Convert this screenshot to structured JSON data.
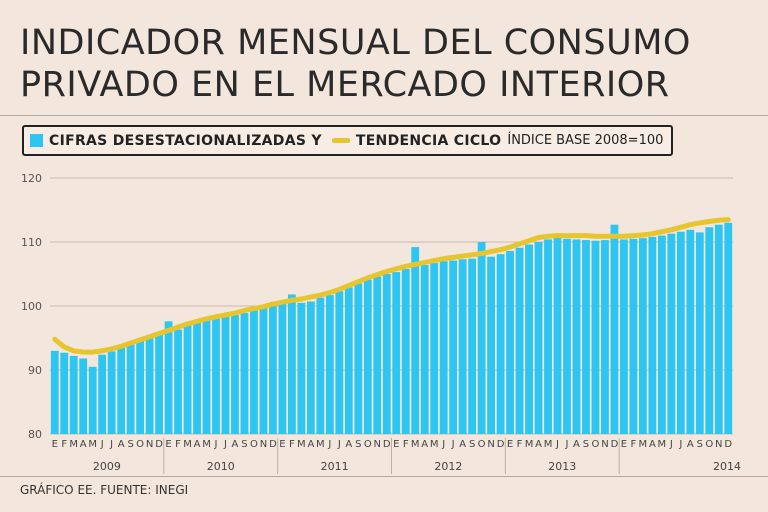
{
  "chart_data": {
    "type": "bar",
    "title_lines": [
      "INDICADOR MENSUAL DEL CONSUMO",
      "PRIVADO EN EL MERCADO INTERIOR"
    ],
    "legend": {
      "series_1": "CIFRAS DESESTACIONALIZADAS Y",
      "series_2": "TENDENCIA CICLO",
      "note": "ÍNDICE BASE 2008=100"
    },
    "ylim": [
      80,
      120
    ],
    "yticks": [
      80,
      90,
      100,
      110,
      120
    ],
    "grid": true,
    "years": [
      "2009",
      "2010",
      "2011",
      "2012",
      "2013",
      "2014"
    ],
    "month_letters": [
      "E",
      "F",
      "M",
      "A",
      "M",
      "J",
      "J",
      "A",
      "S",
      "O",
      "N",
      "D"
    ],
    "months_2014": 6,
    "series": [
      {
        "type": "bar",
        "color": "#2dc5f2",
        "values": [
          93.0,
          92.7,
          92.2,
          91.8,
          90.5,
          92.4,
          92.9,
          93.5,
          94.0,
          94.6,
          95.2,
          95.6,
          97.6,
          96.3,
          97.0,
          97.4,
          97.8,
          98.0,
          98.3,
          98.6,
          98.9,
          99.3,
          99.7,
          100.3,
          100.7,
          101.8,
          100.5,
          100.7,
          101.3,
          101.7,
          102.3,
          102.9,
          103.5,
          104.1,
          104.6,
          105.0,
          105.3,
          105.8,
          109.2,
          106.4,
          106.7,
          107.0,
          107.1,
          107.3,
          107.4,
          110.0,
          107.7,
          108.1,
          108.6,
          109.1,
          109.6,
          110.0,
          110.4,
          110.7,
          110.5,
          110.4,
          110.3,
          110.2,
          110.3,
          112.7,
          110.4,
          110.5,
          110.6,
          110.8,
          111.0,
          111.3,
          111.6,
          111.9,
          111.5,
          112.3,
          112.7,
          113.0
        ]
      },
      {
        "type": "line",
        "color": "#e6c52e",
        "values": [
          94.8,
          93.6,
          93.0,
          92.8,
          92.8,
          93.0,
          93.3,
          93.7,
          94.2,
          94.7,
          95.2,
          95.7,
          96.2,
          96.7,
          97.2,
          97.6,
          98.0,
          98.3,
          98.6,
          98.9,
          99.3,
          99.6,
          99.9,
          100.3,
          100.6,
          100.9,
          101.1,
          101.4,
          101.7,
          102.1,
          102.6,
          103.2,
          103.8,
          104.4,
          104.9,
          105.4,
          105.8,
          106.2,
          106.5,
          106.8,
          107.1,
          107.4,
          107.6,
          107.8,
          108.0,
          108.2,
          108.5,
          108.8,
          109.2,
          109.7,
          110.2,
          110.7,
          110.9,
          111.0,
          111.0,
          111.0,
          111.0,
          110.9,
          110.9,
          110.9,
          110.9,
          111.0,
          111.1,
          111.3,
          111.6,
          111.9,
          112.3,
          112.7,
          113.0,
          113.2,
          113.4,
          113.5
        ]
      }
    ]
  },
  "footer": {
    "source": "GRÁFICO EE. FUENTE: INEGI"
  }
}
